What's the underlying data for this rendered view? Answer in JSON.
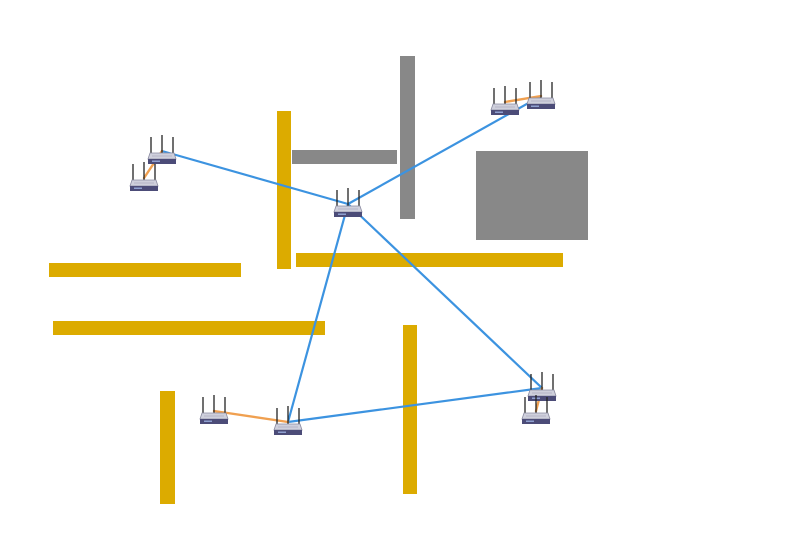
{
  "colors": {
    "background": "#ffffff",
    "wall_yellow": "#dcab00",
    "wall_gray": "#888888",
    "backbone_link": "#3c93e0",
    "local_link": "#f0a050",
    "router_body": "#4c4c78",
    "router_top": "#cfd0dc",
    "antenna": "#222222"
  },
  "icon": "wireless-router-icon",
  "walls": [
    {
      "id": "wall-yellow-1",
      "color": "yellow"
    },
    {
      "id": "wall-yellow-2",
      "color": "yellow"
    },
    {
      "id": "wall-yellow-3",
      "color": "yellow"
    },
    {
      "id": "wall-yellow-4",
      "color": "yellow"
    },
    {
      "id": "wall-yellow-5",
      "color": "yellow"
    },
    {
      "id": "wall-yellow-6",
      "color": "yellow"
    },
    {
      "id": "wall-gray-1",
      "color": "gray"
    },
    {
      "id": "wall-gray-2",
      "color": "gray"
    },
    {
      "id": "obstacle-gray-block",
      "color": "gray"
    }
  ],
  "routers": [
    {
      "id": "r-center"
    },
    {
      "id": "r-upper-left-a"
    },
    {
      "id": "r-upper-left-b"
    },
    {
      "id": "r-upper-right-a"
    },
    {
      "id": "r-upper-right-b"
    },
    {
      "id": "r-lower-center-a"
    },
    {
      "id": "r-lower-center-b"
    },
    {
      "id": "r-lower-right-a"
    },
    {
      "id": "r-lower-right-b"
    }
  ],
  "links": [
    {
      "from": "r-center",
      "to": "r-upper-left-a",
      "type": "backbone"
    },
    {
      "from": "r-center",
      "to": "r-upper-right-a",
      "type": "backbone"
    },
    {
      "from": "r-center",
      "to": "r-lower-center-a",
      "type": "backbone"
    },
    {
      "from": "r-center",
      "to": "r-lower-right-a",
      "type": "backbone"
    },
    {
      "from": "r-lower-center-a",
      "to": "r-lower-right-a",
      "type": "backbone"
    },
    {
      "from": "r-upper-left-a",
      "to": "r-upper-left-b",
      "type": "local"
    },
    {
      "from": "r-upper-right-a",
      "to": "r-upper-right-b",
      "type": "local"
    },
    {
      "from": "r-lower-center-a",
      "to": "r-lower-center-b",
      "type": "local"
    },
    {
      "from": "r-lower-right-a",
      "to": "r-lower-right-b",
      "type": "local"
    }
  ]
}
